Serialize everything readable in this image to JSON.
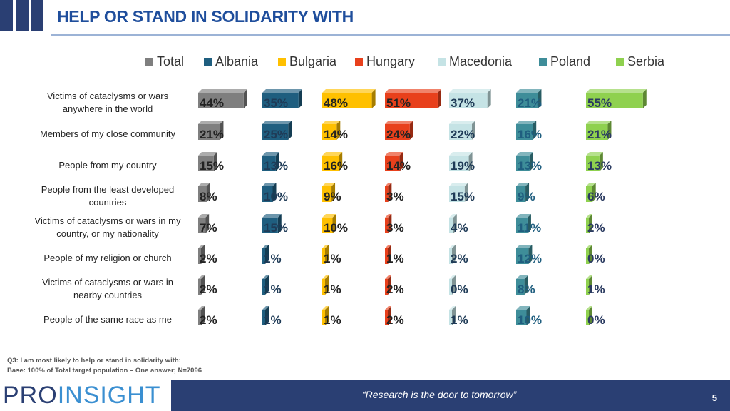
{
  "header": {
    "title": "HELP OR STAND IN SOLIDARITY WITH"
  },
  "chart_data": {
    "type": "bar",
    "orientation": "horizontal-3d-grouped",
    "title": "HELP OR STAND IN SOLIDARITY WITH",
    "categories": [
      "Victims of cataclysms or wars anywhere in the world",
      "Members of my close community",
      "People from my country",
      "People from the least developed countries",
      "Victims of cataclysms or wars in my country, or my nationality",
      "People of my religion or church",
      "Victims of cataclysms or wars in nearby countries",
      "People of the same race as me"
    ],
    "series": [
      {
        "name": "Total",
        "color": "#7f7f7f",
        "values": [
          44,
          21,
          15,
          8,
          7,
          2,
          2,
          2
        ]
      },
      {
        "name": "Albania",
        "color": "#1f5e7f",
        "values": [
          35,
          25,
          13,
          10,
          15,
          1,
          1,
          1
        ]
      },
      {
        "name": "Bulgaria",
        "color": "#ffc000",
        "values": [
          48,
          14,
          16,
          9,
          10,
          1,
          1,
          1
        ]
      },
      {
        "name": "Hungary",
        "color": "#e8401c",
        "values": [
          51,
          24,
          14,
          3,
          3,
          1,
          2,
          2
        ]
      },
      {
        "name": "Macedonia",
        "color": "#c5e3e5",
        "values": [
          37,
          22,
          19,
          15,
          4,
          2,
          0,
          1
        ]
      },
      {
        "name": "Poland",
        "color": "#3e8d99",
        "values": [
          21,
          16,
          13,
          9,
          11,
          12,
          8,
          10
        ]
      },
      {
        "name": "Serbia",
        "color": "#8fd14f",
        "values": [
          55,
          21,
          13,
          6,
          2,
          0,
          1,
          0
        ]
      }
    ],
    "value_suffix": "%",
    "legend_position": "top",
    "grid": false
  },
  "footnote": {
    "question": "Q3: I am most likely to help or stand in solidarity with:",
    "base": "Base: 100% of Total target population – One answer; N=7096"
  },
  "footer": {
    "logo_part1": "PRO",
    "logo_part2": "INSIGHT",
    "quote": "“Research is the door to tomorrow”",
    "page_number": "5"
  }
}
